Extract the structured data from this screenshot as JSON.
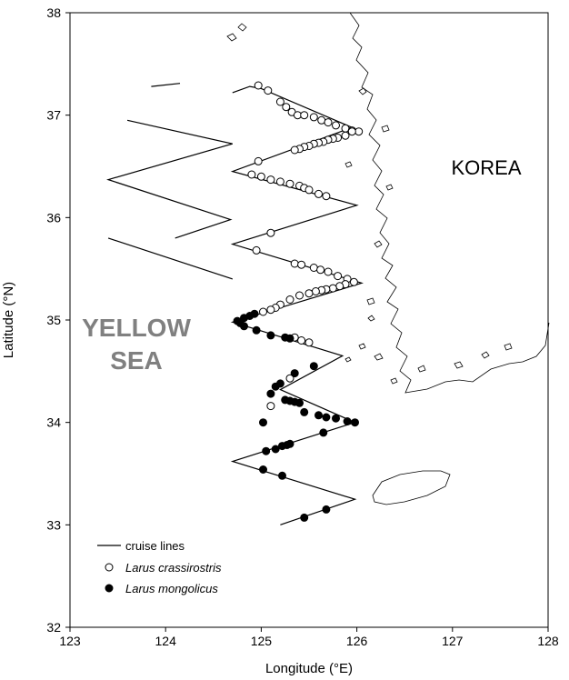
{
  "chart_data": {
    "type": "map",
    "xlabel": "Longitude (°E)",
    "ylabel": "Latitude (°N)",
    "xlim": [
      123,
      128
    ],
    "ylim": [
      32,
      38
    ],
    "x_ticks": [
      "123",
      "124",
      "125",
      "126",
      "127",
      "128"
    ],
    "y_ticks": [
      "32",
      "33",
      "34",
      "35",
      "36",
      "37",
      "38"
    ],
    "grid": false,
    "labels": {
      "korea": "KOREA",
      "sea_line1": "YELLOW",
      "sea_line2": "SEA"
    },
    "legend": {
      "placement": "bottom-left",
      "cruise": "cruise lines",
      "crassirostris": "Larus crassirostris",
      "mongolicus": "Larus mongolicus"
    },
    "colors": {
      "axis": "#000000",
      "line": "#000000",
      "coast": "#000000",
      "sea_label": "#808080",
      "crassirostris_fill": "#ffffff",
      "mongolicus_fill": "#000000"
    },
    "cruise_lines": [
      [
        [
          123.85,
          37.28
        ],
        [
          124.15,
          37.31
        ]
      ],
      [
        [
          123.6,
          36.95
        ],
        [
          124.7,
          36.72
        ],
        [
          123.4,
          36.37
        ],
        [
          124.68,
          35.98
        ],
        [
          124.1,
          35.8
        ]
      ],
      [
        [
          123.4,
          35.8
        ],
        [
          124.7,
          35.4
        ]
      ],
      [
        [
          124.7,
          37.22
        ],
        [
          124.88,
          37.28
        ],
        [
          125.0,
          37.26
        ],
        [
          125.95,
          36.88
        ],
        [
          124.7,
          36.45
        ],
        [
          126.0,
          36.12
        ],
        [
          124.7,
          35.74
        ],
        [
          126.05,
          35.36
        ],
        [
          124.7,
          34.98
        ],
        [
          125.85,
          34.65
        ],
        [
          125.2,
          34.32
        ],
        [
          125.98,
          34.0
        ],
        [
          124.7,
          33.62
        ],
        [
          125.98,
          33.25
        ],
        [
          125.2,
          33.0
        ]
      ]
    ],
    "series": [
      {
        "name": "Larus crassirostris",
        "marker": "open-circle",
        "points": [
          [
            124.97,
            37.29
          ],
          [
            125.07,
            37.24
          ],
          [
            125.2,
            37.13
          ],
          [
            125.26,
            37.08
          ],
          [
            125.32,
            37.03
          ],
          [
            125.38,
            37.0
          ],
          [
            125.45,
            37.0
          ],
          [
            125.55,
            36.98
          ],
          [
            125.63,
            36.95
          ],
          [
            125.7,
            36.93
          ],
          [
            125.78,
            36.9
          ],
          [
            125.88,
            36.87
          ],
          [
            125.95,
            36.85
          ],
          [
            126.02,
            36.84
          ],
          [
            125.95,
            36.84
          ],
          [
            125.88,
            36.8
          ],
          [
            125.8,
            36.78
          ],
          [
            125.75,
            36.77
          ],
          [
            125.7,
            36.76
          ],
          [
            125.65,
            36.74
          ],
          [
            125.6,
            36.73
          ],
          [
            125.55,
            36.72
          ],
          [
            125.5,
            36.7
          ],
          [
            125.45,
            36.69
          ],
          [
            125.4,
            36.67
          ],
          [
            125.35,
            36.66
          ],
          [
            124.97,
            36.55
          ],
          [
            124.9,
            36.42
          ],
          [
            125.0,
            36.4
          ],
          [
            125.1,
            36.37
          ],
          [
            125.2,
            36.35
          ],
          [
            125.3,
            36.33
          ],
          [
            125.4,
            36.31
          ],
          [
            125.45,
            36.29
          ],
          [
            125.5,
            36.27
          ],
          [
            125.6,
            36.23
          ],
          [
            125.68,
            36.21
          ],
          [
            125.1,
            35.85
          ],
          [
            124.95,
            35.68
          ],
          [
            125.35,
            35.55
          ],
          [
            125.42,
            35.54
          ],
          [
            125.55,
            35.51
          ],
          [
            125.62,
            35.49
          ],
          [
            125.7,
            35.47
          ],
          [
            125.8,
            35.43
          ],
          [
            125.9,
            35.4
          ],
          [
            125.97,
            35.37
          ],
          [
            125.88,
            35.35
          ],
          [
            125.82,
            35.33
          ],
          [
            125.75,
            35.31
          ],
          [
            125.68,
            35.3
          ],
          [
            125.63,
            35.29
          ],
          [
            125.57,
            35.28
          ],
          [
            125.5,
            35.26
          ],
          [
            125.4,
            35.24
          ],
          [
            125.3,
            35.2
          ],
          [
            125.2,
            35.15
          ],
          [
            125.15,
            35.12
          ],
          [
            125.1,
            35.1
          ],
          [
            125.02,
            35.08
          ],
          [
            125.35,
            34.83
          ],
          [
            125.42,
            34.8
          ],
          [
            125.5,
            34.78
          ],
          [
            125.3,
            34.43
          ],
          [
            125.1,
            34.16
          ]
        ]
      },
      {
        "name": "Larus mongolicus",
        "marker": "filled-circle",
        "points": [
          [
            124.75,
            34.99
          ],
          [
            124.82,
            35.02
          ],
          [
            124.88,
            35.04
          ],
          [
            124.93,
            35.06
          ],
          [
            124.78,
            34.97
          ],
          [
            124.82,
            34.94
          ],
          [
            124.95,
            34.9
          ],
          [
            125.1,
            34.85
          ],
          [
            125.25,
            34.83
          ],
          [
            125.3,
            34.82
          ],
          [
            125.55,
            34.55
          ],
          [
            125.35,
            34.48
          ],
          [
            125.2,
            34.38
          ],
          [
            125.15,
            34.35
          ],
          [
            125.1,
            34.28
          ],
          [
            125.25,
            34.22
          ],
          [
            125.3,
            34.21
          ],
          [
            125.35,
            34.2
          ],
          [
            125.4,
            34.19
          ],
          [
            125.45,
            34.1
          ],
          [
            125.6,
            34.07
          ],
          [
            125.68,
            34.05
          ],
          [
            125.78,
            34.04
          ],
          [
            125.9,
            34.01
          ],
          [
            125.98,
            34.0
          ],
          [
            125.02,
            34.0
          ],
          [
            125.65,
            33.9
          ],
          [
            125.3,
            33.79
          ],
          [
            125.27,
            33.78
          ],
          [
            125.22,
            33.77
          ],
          [
            125.15,
            33.74
          ],
          [
            125.05,
            33.72
          ],
          [
            125.02,
            33.54
          ],
          [
            125.22,
            33.48
          ],
          [
            125.68,
            33.15
          ],
          [
            125.45,
            33.07
          ]
        ]
      }
    ]
  }
}
